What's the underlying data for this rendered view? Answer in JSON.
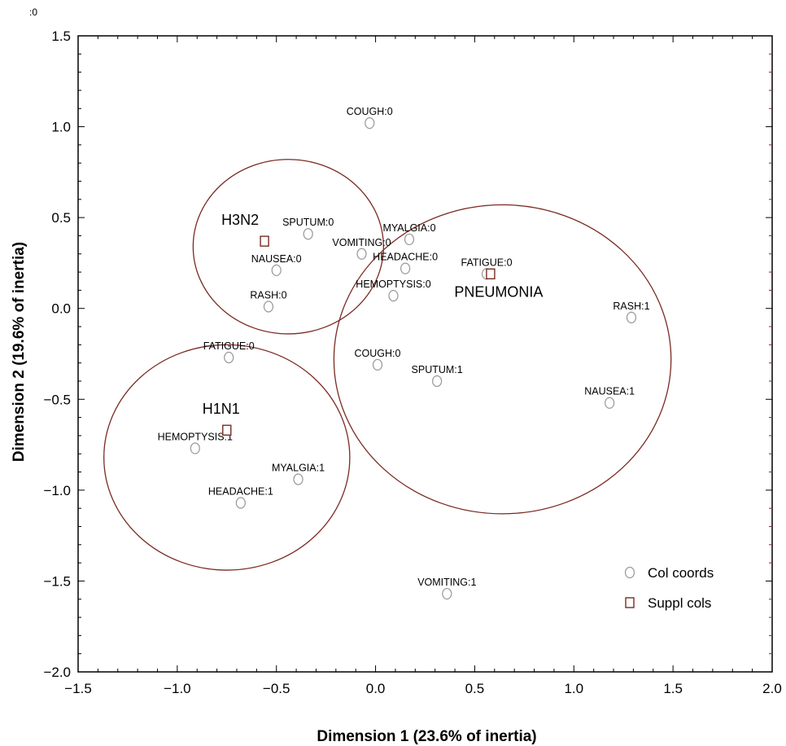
{
  "chart_data": {
    "type": "scatter",
    "xlabel": "Dimension 1 (23.6% of inertia)",
    "ylabel": "Dimension 2 (19.6% of inertia)",
    "corner_label": ":0",
    "xlim": [
      -1.5,
      2.0
    ],
    "ylim": [
      -2.0,
      1.5
    ],
    "x_ticks": [
      "−1.5",
      "−1.0",
      "−0.5",
      "0.0",
      "0.5",
      "1.0",
      "1.5",
      "2.0"
    ],
    "x_tick_values": [
      -1.5,
      -1.0,
      -0.5,
      0.0,
      0.5,
      1.0,
      1.5,
      2.0
    ],
    "y_ticks": [
      "1.5",
      "1.0",
      "0.5",
      "0.0",
      "−0.5",
      "−1.0",
      "−1.5",
      "−2.0"
    ],
    "y_tick_values": [
      1.5,
      1.0,
      0.5,
      0.0,
      -0.5,
      -1.0,
      -1.5,
      -2.0
    ],
    "legend_position": "bottom-right",
    "series": [
      {
        "name": "Col coords",
        "marker": "circle",
        "color": "#999999",
        "points": [
          {
            "label": "COUGH:0",
            "x": -0.03,
            "y": 1.02
          },
          {
            "label": "SPUTUM:0",
            "x": -0.34,
            "y": 0.41
          },
          {
            "label": "MYALGIA:0",
            "x": 0.17,
            "y": 0.38
          },
          {
            "label": "VOMITING:0",
            "x": -0.07,
            "y": 0.3
          },
          {
            "label": "HEADACHE:0",
            "x": 0.15,
            "y": 0.22
          },
          {
            "label": "NAUSEA:0",
            "x": -0.5,
            "y": 0.21
          },
          {
            "label": "FATIGUE:0",
            "x": 0.56,
            "y": 0.19
          },
          {
            "label": "HEMOPTYSIS:0",
            "x": 0.09,
            "y": 0.07
          },
          {
            "label": "RASH:0",
            "x": -0.54,
            "y": 0.01
          },
          {
            "label": "RASH:1",
            "x": 1.29,
            "y": -0.05
          },
          {
            "label": "FATIGUE:0",
            "x": -0.74,
            "y": -0.27
          },
          {
            "label": "COUGH:0",
            "x": 0.01,
            "y": -0.31
          },
          {
            "label": "SPUTUM:1",
            "x": 0.31,
            "y": -0.4
          },
          {
            "label": "NAUSEA:1",
            "x": 1.18,
            "y": -0.52
          },
          {
            "label": "HEMOPTYSIS:1",
            "x": -0.91,
            "y": -0.77
          },
          {
            "label": "MYALGIA:1",
            "x": -0.39,
            "y": -0.94
          },
          {
            "label": "HEADACHE:1",
            "x": -0.68,
            "y": -1.07
          },
          {
            "label": "VOMITING:1",
            "x": 0.36,
            "y": -1.57
          }
        ]
      },
      {
        "name": "Suppl cols",
        "marker": "square",
        "color": "#7a2a22",
        "points": [
          {
            "label": "H3N2",
            "x": -0.56,
            "y": 0.37
          },
          {
            "label": "PNEUMONIA",
            "x": 0.58,
            "y": 0.19
          },
          {
            "label": "H1N1",
            "x": -0.75,
            "y": -0.67
          }
        ]
      }
    ],
    "groups": [
      {
        "label": "H3N2",
        "cx": -0.44,
        "cy": 0.34,
        "r": 0.48
      },
      {
        "label": "PNEUMONIA",
        "cx": 0.64,
        "cy": -0.28,
        "r": 0.85
      },
      {
        "label": "H1N1",
        "cx": -0.75,
        "cy": -0.82,
        "r": 0.62
      }
    ]
  }
}
